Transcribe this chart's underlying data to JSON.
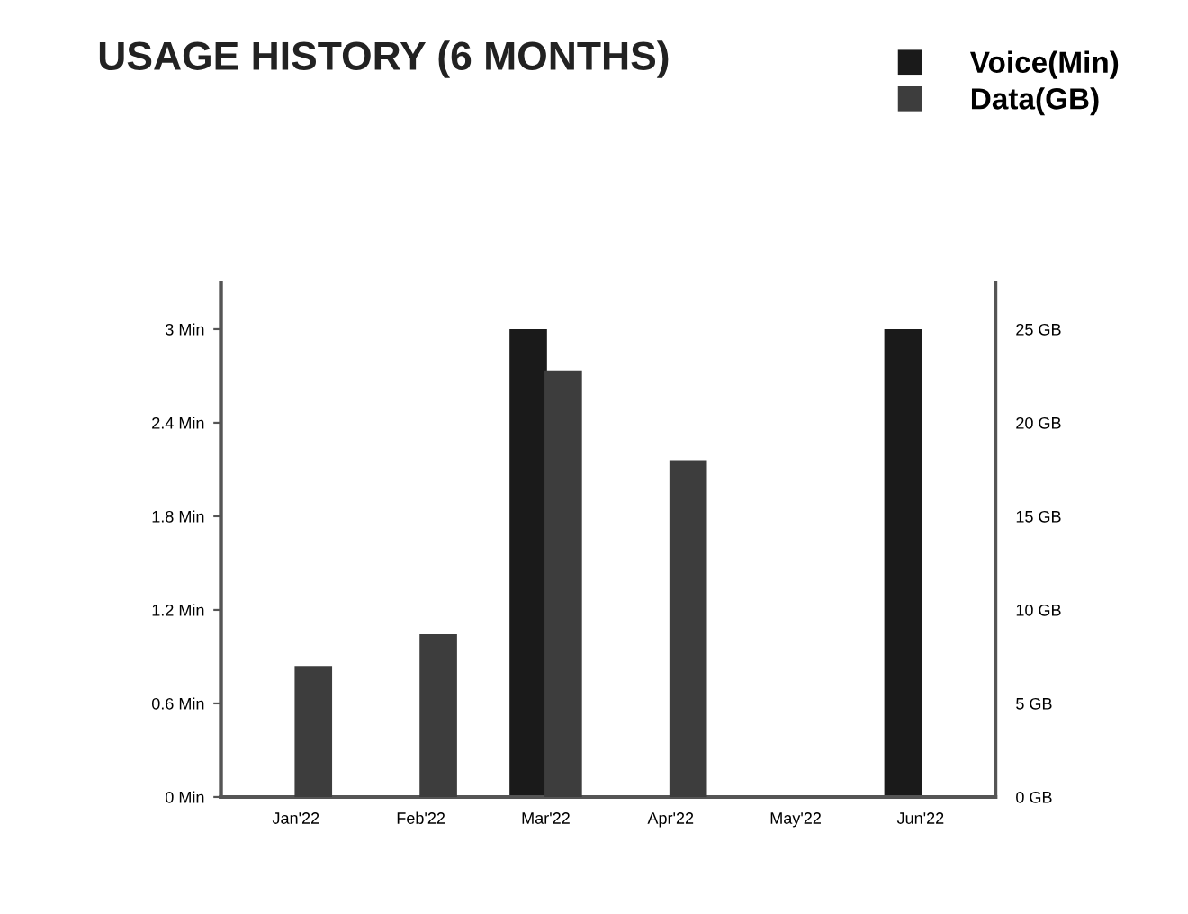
{
  "chart_data": {
    "type": "bar",
    "title": "USAGE HISTORY (6 MONTHS)",
    "categories": [
      "Jan'22",
      "Feb'22",
      "Mar'22",
      "Apr'22",
      "May'22",
      "Jun'22"
    ],
    "series": [
      {
        "name": "Voice(Min)",
        "color": "#1a1a1a",
        "values": [
          0,
          0,
          3,
          0,
          0,
          3
        ]
      },
      {
        "name": "Data(GB)",
        "color": "#3d3d3d",
        "axis": "y2",
        "values": [
          7,
          8.7,
          22.8,
          18,
          0,
          0
        ]
      }
    ],
    "ylim": [
      0,
      3.3
    ],
    "yticks": [
      {
        "value": 0,
        "label": "0 Min"
      },
      {
        "value": 0.6,
        "label": "0.6 Min"
      },
      {
        "value": 1.2,
        "label": "1.2 Min"
      },
      {
        "value": 1.8,
        "label": "1.8 Min"
      },
      {
        "value": 2.4,
        "label": "2.4 Min"
      },
      {
        "value": 3,
        "label": "3 Min"
      }
    ],
    "y2lim": [
      0,
      27.5
    ],
    "y2ticks": [
      {
        "value": 0,
        "label": "0 GB"
      },
      {
        "value": 5,
        "label": "5 GB"
      },
      {
        "value": 10,
        "label": "10 GB"
      },
      {
        "value": 15,
        "label": "15 GB"
      },
      {
        "value": 20,
        "label": "20 GB"
      },
      {
        "value": 25,
        "label": "25 GB"
      }
    ],
    "legend": "top right",
    "grid": false
  }
}
